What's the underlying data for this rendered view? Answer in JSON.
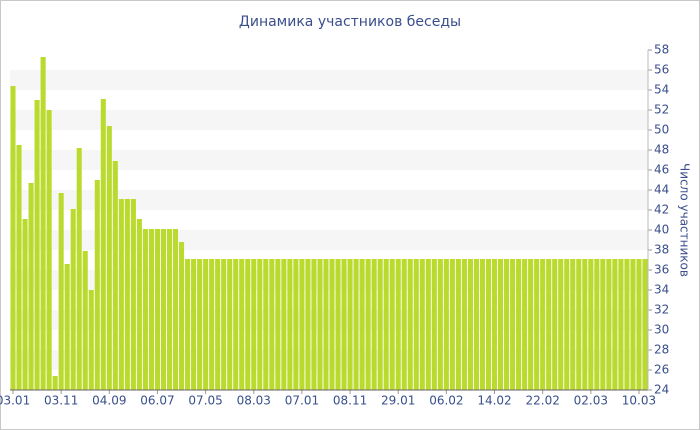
{
  "chart_data": {
    "type": "bar",
    "title": "Динамика участников беседы",
    "y_label": "Число участников",
    "categories": [
      "03.01",
      null,
      null,
      null,
      null,
      null,
      null,
      null,
      "03.11",
      null,
      null,
      null,
      null,
      null,
      null,
      null,
      "04.09",
      null,
      null,
      null,
      null,
      null,
      null,
      null,
      "06.07",
      null,
      null,
      null,
      null,
      null,
      null,
      null,
      "07.05",
      null,
      null,
      null,
      null,
      null,
      null,
      null,
      "08.03",
      null,
      null,
      null,
      null,
      null,
      null,
      null,
      "07.01",
      null,
      null,
      null,
      null,
      null,
      null,
      null,
      "08.11",
      null,
      null,
      null,
      null,
      null,
      null,
      null,
      "29.01",
      null,
      null,
      null,
      null,
      null,
      null,
      null,
      "06.02",
      null,
      null,
      null,
      null,
      null,
      null,
      null,
      "14.02",
      null,
      null,
      null,
      null,
      null,
      null,
      null,
      "22.02",
      null,
      null,
      null,
      null,
      null,
      null,
      null,
      "02.03",
      null,
      null,
      null,
      null,
      null,
      null,
      null,
      "10.03",
      null
    ],
    "values": [
      54.4,
      48.5,
      41.1,
      44.7,
      53,
      57.3,
      52,
      25.4,
      43.7,
      36.6,
      42.1,
      48.2,
      37.9,
      34,
      45,
      53.1,
      50.4,
      46.9,
      43.1,
      43.1,
      43.1,
      41.1,
      40.1,
      40.1,
      40.1,
      40.1,
      40.1,
      40.1,
      38.8,
      37.1,
      37.1,
      37.1,
      37.1,
      37.1,
      37.1,
      37.1,
      37.1,
      37.1,
      37.1,
      37.1,
      37.1,
      37.1,
      37.1,
      37.1,
      37.1,
      37.1,
      37.1,
      37.1,
      37.1,
      37.1,
      37.1,
      37.1,
      37.1,
      37.1,
      37.1,
      37.1,
      37.1,
      37.1,
      37.1,
      37.1,
      37.1,
      37.1,
      37.1,
      37.1,
      37.1,
      37.1,
      37.1,
      37.1,
      37.1,
      37.1,
      37.1,
      37.1,
      37.1,
      37.1,
      37.1,
      37.1,
      37.1,
      37.1,
      37.1,
      37.1,
      37.1,
      37.1,
      37.1,
      37.1,
      37.1,
      37.1,
      37.1,
      37.1,
      37.1,
      37.1,
      37.1,
      37.1,
      37.1,
      37.1,
      37.1,
      37.1,
      37.1,
      37.1,
      37.1,
      37.1,
      37.1,
      37.1,
      37.1,
      37.1,
      37.1,
      37.1
    ],
    "color": "#bada2d",
    "ylim": [
      24,
      58
    ],
    "yticks": [
      24,
      26,
      28,
      30,
      32,
      34,
      36,
      38,
      40,
      42,
      44,
      46,
      48,
      50,
      52,
      54,
      56,
      58
    ],
    "grid": true,
    "y_axis_side": "right"
  }
}
